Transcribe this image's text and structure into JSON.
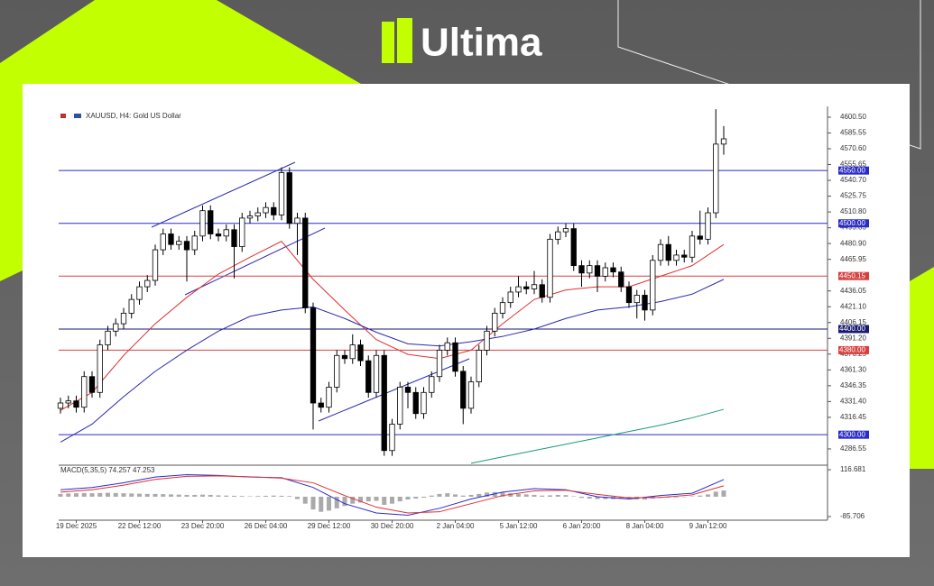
{
  "header": {
    "brand": "Ultima"
  },
  "chart_data": {
    "type": "candlestick",
    "title": "XAUUSD, H4:  Gold US Dollar",
    "open": [
      4325,
      4330,
      4332,
      4326,
      4355,
      4340,
      4385,
      4398,
      4405,
      4415,
      4428,
      4440,
      4446,
      4475,
      4490,
      4480,
      4483,
      4475,
      4488,
      4512,
      4490,
      4488,
      4494,
      4478,
      4505,
      4507,
      4510,
      4515,
      4508,
      4548,
      4500,
      4505,
      4420,
      4330,
      4326,
      4345,
      4375,
      4372,
      4385,
      4370,
      4340,
      4375,
      4285,
      4310,
      4345,
      4340,
      4320,
      4340,
      4355,
      4380,
      4387,
      4360,
      4325,
      4350,
      4380,
      4398,
      4415,
      4425,
      4435,
      4440,
      4438,
      4442,
      4430,
      4485,
      4492,
      4495,
      4460,
      4453,
      4460,
      4450,
      4458,
      4454,
      4440,
      4425,
      4432,
      4418,
      4465,
      4480,
      4465,
      4470,
      4468,
      4488,
      4485,
      4510,
      4575
    ],
    "high": [
      4335,
      4337,
      4337,
      4360,
      4360,
      4390,
      4403,
      4410,
      4420,
      4433,
      4445,
      4451,
      4480,
      4495,
      4495,
      4488,
      4488,
      4493,
      4517,
      4517,
      4495,
      4499,
      4499,
      4510,
      4512,
      4515,
      4520,
      4520,
      4553,
      4553,
      4510,
      4510,
      4425,
      4335,
      4350,
      4380,
      4380,
      4395,
      4390,
      4375,
      4380,
      4380,
      4315,
      4350,
      4350,
      4345,
      4345,
      4360,
      4385,
      4392,
      4392,
      4365,
      4355,
      4385,
      4403,
      4420,
      4430,
      4440,
      4450,
      4445,
      4455,
      4447,
      4490,
      4497,
      4500,
      4500,
      4465,
      4465,
      4465,
      4463,
      4463,
      4459,
      4445,
      4437,
      4437,
      4470,
      4485,
      4488,
      4475,
      4475,
      4493,
      4512,
      4515,
      4608,
      4592
    ],
    "low": [
      4320,
      4325,
      4321,
      4321,
      4335,
      4335,
      4380,
      4393,
      4400,
      4410,
      4423,
      4435,
      4441,
      4470,
      4475,
      4475,
      4445,
      4470,
      4483,
      4485,
      4483,
      4483,
      4448,
      4473,
      4500,
      4502,
      4505,
      4503,
      4503,
      4495,
      4470,
      4415,
      4305,
      4321,
      4321,
      4340,
      4367,
      4367,
      4365,
      4335,
      4335,
      4280,
      4280,
      4305,
      4325,
      4315,
      4315,
      4335,
      4350,
      4375,
      4355,
      4310,
      4320,
      4345,
      4375,
      4393,
      4410,
      4420,
      4430,
      4433,
      4433,
      4425,
      4425,
      4480,
      4487,
      4455,
      4440,
      4448,
      4435,
      4445,
      4449,
      4435,
      4420,
      4410,
      4408,
      4413,
      4460,
      4460,
      4460,
      4463,
      4463,
      4480,
      4480,
      4505,
      4565
    ],
    "close": [
      4330,
      4332,
      4326,
      4355,
      4340,
      4385,
      4398,
      4405,
      4415,
      4428,
      4440,
      4446,
      4475,
      4490,
      4480,
      4483,
      4475,
      4488,
      4512,
      4490,
      4488,
      4494,
      4478,
      4505,
      4507,
      4510,
      4515,
      4508,
      4548,
      4500,
      4505,
      4420,
      4330,
      4326,
      4345,
      4375,
      4372,
      4385,
      4370,
      4340,
      4375,
      4285,
      4310,
      4345,
      4340,
      4320,
      4340,
      4355,
      4380,
      4387,
      4360,
      4325,
      4350,
      4380,
      4398,
      4415,
      4425,
      4435,
      4440,
      4438,
      4442,
      4430,
      4485,
      4492,
      4495,
      4460,
      4453,
      4460,
      4450,
      4458,
      4454,
      4440,
      4425,
      4432,
      4418,
      4465,
      4480,
      4465,
      4470,
      4468,
      4488,
      4485,
      4510,
      4575,
      4580
    ],
    "overlays": [
      {
        "color": "#e03030",
        "x": [
          0,
          4,
          8,
          12,
          16,
          20,
          24,
          28,
          32,
          36,
          40,
          44,
          48,
          52,
          56,
          60,
          64,
          68,
          72,
          76,
          80,
          84
        ],
        "values": [
          4323,
          4340,
          4375,
          4405,
          4430,
          4452,
          4468,
          4483,
          4447,
          4418,
          4390,
          4376,
          4372,
          4380,
          4405,
          4428,
          4437,
          4440,
          4440,
          4450,
          4460,
          4480
        ]
      },
      {
        "color": "#2a2ab0",
        "x": [
          0,
          4,
          8,
          12,
          16,
          20,
          24,
          28,
          32,
          36,
          40,
          44,
          48,
          52,
          56,
          60,
          64,
          68,
          72,
          76,
          80,
          84
        ],
        "values": [
          4293,
          4310,
          4336,
          4360,
          4380,
          4398,
          4412,
          4418,
          4421,
          4410,
          4397,
          4386,
          4384,
          4388,
          4393,
          4400,
          4410,
          4418,
          4421,
          4426,
          4433,
          4447
        ]
      },
      {
        "color": "#1a9a7a",
        "x": [
          52,
          56,
          60,
          64,
          68,
          72,
          76,
          80,
          84
        ],
        "values": [
          4273,
          4279,
          4285,
          4291,
          4297,
          4303,
          4309,
          4316,
          4324
        ]
      }
    ],
    "levels": [
      {
        "value": 4550,
        "label": "4550.00",
        "color": "#2b2bc8"
      },
      {
        "value": 4500,
        "label": "4500.00",
        "color": "#2b2bc8"
      },
      {
        "value": 4450.15,
        "label": "4450.15",
        "color": "#d84040"
      },
      {
        "value": 4400,
        "label": "4400.00",
        "color": "#1a1a70"
      },
      {
        "value": 4380,
        "label": "4380.00",
        "color": "#d84040"
      },
      {
        "value": 4300,
        "label": "4300.00",
        "color": "#2b2bc8"
      }
    ],
    "ylim": [
      4272,
      4609
    ],
    "yticks": [
      {
        "value": 4600.5,
        "label": "4600.50"
      },
      {
        "value": 4585.55,
        "label": "4585.55"
      },
      {
        "value": 4570.6,
        "label": "4570.60"
      },
      {
        "value": 4555.65,
        "label": "4555.65"
      },
      {
        "value": 4540.7,
        "label": "4540.70"
      },
      {
        "value": 4525.75,
        "label": "4525.75"
      },
      {
        "value": 4510.8,
        "label": "4510.80"
      },
      {
        "value": 4495.85,
        "label": "4495.85"
      },
      {
        "value": 4480.9,
        "label": "4480.90"
      },
      {
        "value": 4465.95,
        "label": "4465.95"
      },
      {
        "value": 4436.05,
        "label": "4436.05"
      },
      {
        "value": 4421.1,
        "label": "4421.10"
      },
      {
        "value": 4406.15,
        "label": "4406.15"
      },
      {
        "value": 4391.2,
        "label": "4391.20"
      },
      {
        "value": 4376.25,
        "label": "4376.25"
      },
      {
        "value": 4361.3,
        "label": "4361.30"
      },
      {
        "value": 4346.35,
        "label": "4346.35"
      },
      {
        "value": 4331.4,
        "label": "4331.40"
      },
      {
        "value": 4316.45,
        "label": "4316.45"
      },
      {
        "value": 4286.55,
        "label": "4286.55"
      }
    ],
    "xticks": [
      {
        "value": 2,
        "label": "19 Dec 2025"
      },
      {
        "value": 10,
        "label": "22 Dec 12:00"
      },
      {
        "value": 18,
        "label": "23 Dec 20:00"
      },
      {
        "value": 26,
        "label": "26 Dec 04:00"
      },
      {
        "value": 34,
        "label": "29 Dec 12:00"
      },
      {
        "value": 42,
        "label": "30 Dec 20:00"
      },
      {
        "value": 50,
        "label": "2 Jan 04:00"
      },
      {
        "value": 58,
        "label": "5 Jan 12:00"
      },
      {
        "value": 66,
        "label": "6 Jan 20:00"
      },
      {
        "value": 74,
        "label": "8 Jan 04:00"
      },
      {
        "value": 82,
        "label": "9 Jan 12:00"
      }
    ],
    "macd": {
      "title": "MACD(5,35,5) 74.257 47.253",
      "ylim": [
        -101.3,
        132.2
      ],
      "yticks": [
        116.681,
        -85.706
      ],
      "histogram": [
        12,
        14,
        15,
        16,
        15,
        16,
        17,
        16,
        15,
        14,
        13,
        12,
        12,
        11,
        10,
        9,
        8,
        8,
        9,
        8,
        6,
        5,
        4,
        3,
        2,
        3,
        4,
        5,
        4,
        3,
        -10,
        -30,
        -55,
        -65,
        -60,
        -50,
        -40,
        -30,
        -25,
        -20,
        -18,
        -35,
        -30,
        -20,
        -12,
        -8,
        -4,
        5,
        12,
        15,
        10,
        5,
        8,
        12,
        18,
        20,
        18,
        15,
        12,
        10,
        8,
        5,
        6,
        8,
        7,
        2,
        -5,
        -8,
        -10,
        -10,
        -10,
        -9,
        -10,
        -12,
        -12,
        -8,
        -5,
        -4,
        -3,
        -2,
        2,
        5,
        10,
        22,
        27
      ],
      "lines": [
        {
          "color": "#2a2ad0",
          "x": [
            0,
            4,
            8,
            12,
            16,
            20,
            24,
            28,
            32,
            36,
            40,
            44,
            48,
            52,
            56,
            60,
            64,
            68,
            72,
            76,
            80,
            84
          ],
          "values": [
            30,
            40,
            60,
            85,
            95,
            92,
            85,
            82,
            40,
            -30,
            -70,
            -80,
            -50,
            -10,
            20,
            35,
            30,
            0,
            -10,
            5,
            15,
            74
          ]
        },
        {
          "color": "#e03030",
          "x": [
            0,
            4,
            8,
            12,
            16,
            20,
            24,
            28,
            32,
            36,
            40,
            44,
            48,
            52,
            56,
            60,
            64,
            68,
            72,
            76,
            80,
            84
          ],
          "values": [
            20,
            30,
            50,
            75,
            88,
            90,
            86,
            80,
            60,
            5,
            -45,
            -70,
            -65,
            -30,
            5,
            25,
            28,
            10,
            -5,
            -3,
            8,
            47
          ]
        }
      ]
    }
  }
}
